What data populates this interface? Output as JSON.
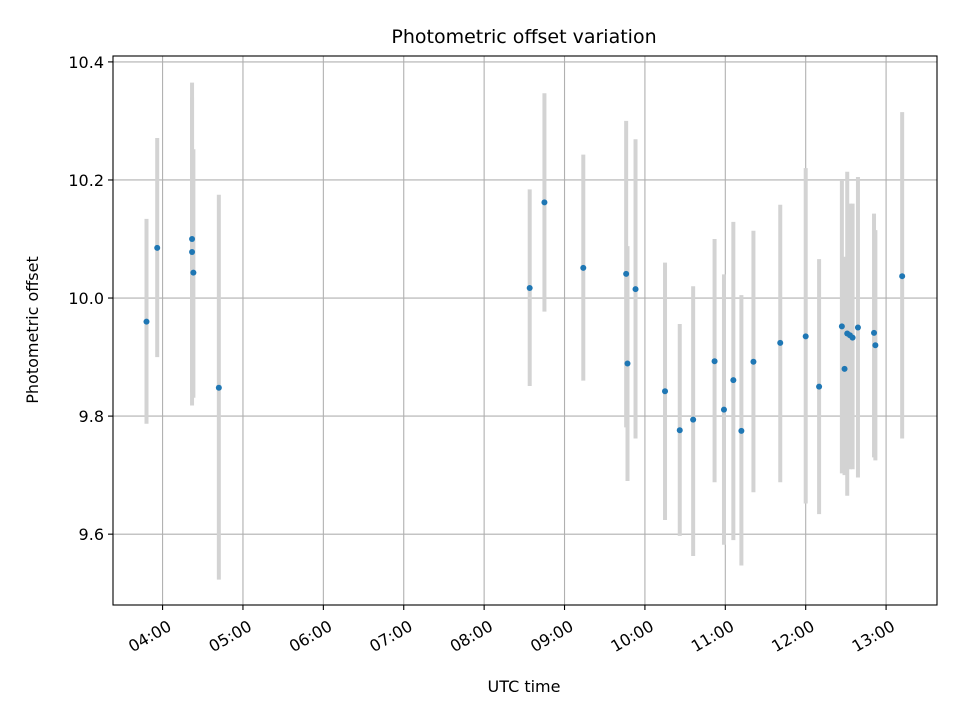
{
  "chart_data": {
    "type": "scatter",
    "title": "Photometric offset variation",
    "xlabel": "UTC time",
    "ylabel": "Photometric offset",
    "x_axis": {
      "scale": "time",
      "xlim": [
        "03:23",
        "13:38"
      ],
      "ticks": [
        "04:00",
        "05:00",
        "06:00",
        "07:00",
        "08:00",
        "09:00",
        "10:00",
        "11:00",
        "12:00",
        "13:00"
      ],
      "tick_rotation": 30
    },
    "y_axis": {
      "ylim": [
        9.48,
        10.41
      ],
      "ticks": [
        "9.6",
        "9.8",
        "10.0",
        "10.2",
        "10.4"
      ]
    },
    "grid": true,
    "legend": "none",
    "colors": {
      "marker": "#1f77b4",
      "errorbar": "#d3d3d3",
      "grid": "#b0b0b0"
    },
    "series": [
      {
        "x": [
          "03:48",
          "03:56",
          "04:22",
          "04:22",
          "04:23",
          "04:42",
          "08:34",
          "08:45",
          "09:14",
          "09:46",
          "09:47",
          "09:53",
          "10:15",
          "10:26",
          "10:36",
          "10:52",
          "10:59",
          "11:06",
          "11:12",
          "11:21",
          "11:41",
          "12:00",
          "12:10",
          "12:27",
          "12:29",
          "12:31",
          "12:33",
          "12:35",
          "12:39",
          "12:51",
          "12:52",
          "13:12"
        ],
        "y": [
          9.96,
          10.085,
          10.1,
          10.078,
          10.043,
          9.848,
          10.017,
          10.162,
          10.051,
          10.041,
          9.889,
          10.015,
          9.842,
          9.776,
          9.794,
          9.893,
          9.811,
          9.861,
          9.775,
          9.892,
          9.924,
          9.935,
          9.85,
          9.952,
          9.88,
          9.94,
          9.937,
          9.933,
          9.95,
          9.941,
          9.92,
          10.037
        ],
        "yerr_low": [
          9.787,
          9.9,
          9.84,
          9.818,
          9.831,
          9.523,
          9.851,
          9.977,
          9.86,
          9.781,
          9.69,
          9.762,
          9.624,
          9.597,
          9.563,
          9.688,
          9.582,
          9.59,
          9.547,
          9.671,
          9.688,
          9.652,
          9.634,
          9.703,
          9.7,
          9.665,
          9.71,
          9.71,
          9.696,
          9.73,
          9.725,
          9.762
        ],
        "yerr_high": [
          10.134,
          10.271,
          10.365,
          10.34,
          10.252,
          10.175,
          10.184,
          10.347,
          10.243,
          10.3,
          10.088,
          10.269,
          10.06,
          9.956,
          10.02,
          10.1,
          10.04,
          10.129,
          10.005,
          10.114,
          10.158,
          10.22,
          10.066,
          10.2,
          10.07,
          10.214,
          10.16,
          10.16,
          10.205,
          10.143,
          10.115,
          10.315
        ]
      }
    ]
  }
}
